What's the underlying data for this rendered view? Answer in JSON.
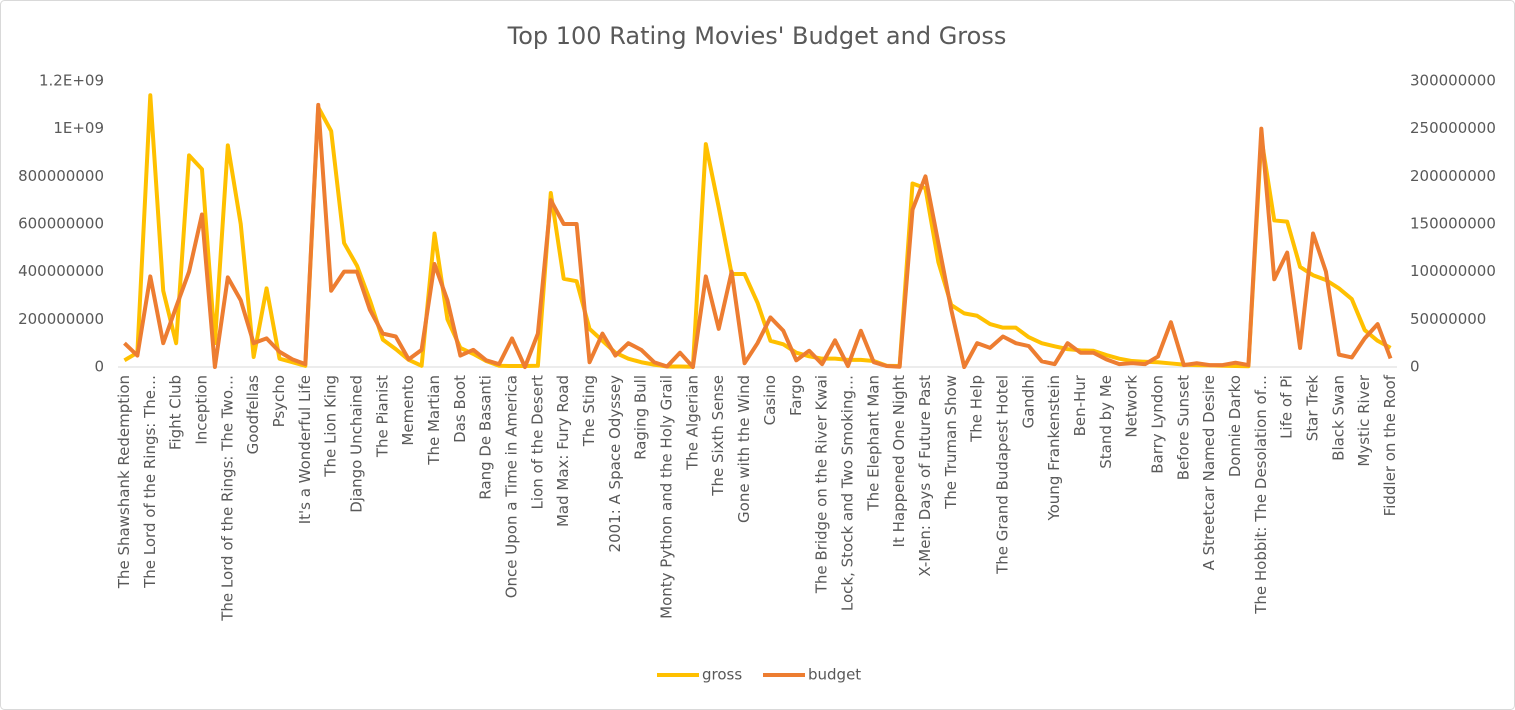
{
  "chart_data": {
    "type": "line",
    "title": "Top 100 Rating Movies' Budget and Gross",
    "categories": [
      "The Shawshank Redemption",
      null,
      "The Lord of the Rings: The…",
      null,
      "Fight Club",
      null,
      "Inception",
      null,
      "The Lord of the Rings: The Two…",
      null,
      "Goodfellas",
      null,
      "Psycho",
      null,
      "It's a Wonderful Life",
      null,
      "The Lion King",
      null,
      "Django Unchained",
      null,
      "The Pianist",
      null,
      "Memento",
      null,
      "The Martian",
      null,
      "Das Boot",
      null,
      "Rang De Basanti",
      null,
      "Once Upon a Time in America",
      null,
      "Lion of the Desert",
      null,
      "Mad Max: Fury Road",
      null,
      "The Sting",
      null,
      "2001: A Space Odyssey",
      null,
      "Raging Bull",
      null,
      "Monty Python and the Holy Grail",
      null,
      "The Algerian",
      null,
      "The Sixth Sense",
      null,
      "Gone with the Wind",
      null,
      "Casino",
      null,
      "Fargo",
      null,
      "The Bridge on the River Kwai",
      null,
      "Lock, Stock and Two Smoking…",
      null,
      "The Elephant Man",
      null,
      "It Happened One Night",
      null,
      "X-Men: Days of Future Past",
      null,
      "The Truman Show",
      null,
      "The Help",
      null,
      "The Grand Budapest Hotel",
      null,
      "Gandhi",
      null,
      "Young Frankenstein",
      null,
      "Ben-Hur",
      null,
      "Stand by Me",
      null,
      "Network",
      null,
      "Barry Lyndon",
      null,
      "Before Sunset",
      null,
      "A Streetcar Named Desire",
      null,
      "Donnie Darko",
      null,
      "The Hobbit: The Desolation of…",
      null,
      "Life of Pi",
      null,
      "Star Trek",
      null,
      "Black Swan",
      null,
      "Mystic River",
      null,
      "Fiddler on the Roof"
    ],
    "series": [
      {
        "name": "gross",
        "color": "#FFC000",
        "values": [
          28000000,
          60000000,
          1140000000,
          320000000,
          100000000,
          888000000,
          830000000,
          100000000,
          930000000,
          600000000,
          42000000,
          330000000,
          35000000,
          20000000,
          5000000,
          1090000000,
          990000000,
          520000000,
          425000000,
          280000000,
          115000000,
          75000000,
          30000000,
          5000000,
          560000000,
          200000000,
          80000000,
          55000000,
          25000000,
          5000000,
          4000000,
          4000000,
          5000000,
          730000000,
          370000000,
          360000000,
          160000000,
          110000000,
          60000000,
          35000000,
          20000000,
          10000000,
          2000000,
          2000000,
          1000000,
          935000000,
          670000000,
          390000000,
          390000000,
          270000000,
          110000000,
          95000000,
          60000000,
          45000000,
          35000000,
          35000000,
          30000000,
          30000000,
          25000000,
          5000000,
          4000000,
          770000000,
          750000000,
          440000000,
          260000000,
          225000000,
          215000000,
          180000000,
          165000000,
          165000000,
          125000000,
          100000000,
          87000000,
          75000000,
          70000000,
          68000000,
          50000000,
          35000000,
          25000000,
          22000000,
          20000000,
          15000000,
          10000000,
          8000000,
          7000000,
          5000000,
          4000000,
          3000000,
          960000000,
          615000000,
          610000000,
          420000000,
          385000000,
          365000000,
          330000000,
          285000000,
          155000000,
          110000000,
          80000000
        ]
      },
      {
        "name": "budget",
        "color": "#ED7D31",
        "axis": "y2",
        "values": [
          25000000,
          12000000,
          95000000,
          25000000,
          63000000,
          100000000,
          160000000,
          0,
          94000000,
          70000000,
          25000000,
          30000000,
          16000000,
          8000000,
          3000000,
          275000000,
          80000000,
          100000000,
          100000000,
          60000000,
          35000000,
          32000000,
          8000000,
          18000000,
          108000000,
          70000000,
          12000000,
          18000000,
          7000000,
          3000000,
          30000000,
          0,
          35000000,
          175000000,
          150000000,
          150000000,
          5000000,
          35000000,
          12000000,
          25000000,
          18000000,
          5000000,
          500000,
          15000000,
          0,
          95000000,
          40000000,
          100000000,
          4000000,
          25000000,
          52000000,
          38000000,
          7000000,
          17000000,
          3000000,
          28000000,
          1000000,
          38000000,
          5000000,
          1000000,
          300000,
          165000000,
          200000000,
          130000000,
          60000000,
          0,
          25000000,
          20000000,
          32000000,
          25000000,
          22000000,
          6000000,
          3000000,
          25000000,
          15000000,
          15000000,
          8000000,
          3000000,
          4000000,
          3000000,
          11000000,
          47000000,
          2000000,
          4000000,
          2000000,
          2000000,
          4500000,
          2000000,
          250000000,
          92000000,
          120000000,
          20000000,
          140000000,
          100000000,
          13000000,
          10000000,
          30000000,
          45000000,
          9000000
        ]
      }
    ],
    "ylim": [
      0,
      1200000000
    ],
    "yticks": [
      0,
      200000000,
      400000000,
      600000000,
      800000000,
      {
        "value": 1000000000,
        "label": "1E+09"
      },
      {
        "value": 1200000000,
        "label": "1.2E+09"
      }
    ],
    "y2lim": [
      0,
      300000000
    ],
    "y2ticks": [
      0,
      50000000,
      100000000,
      150000000,
      200000000,
      250000000,
      300000000
    ],
    "grid": false,
    "legend": "bottom"
  }
}
